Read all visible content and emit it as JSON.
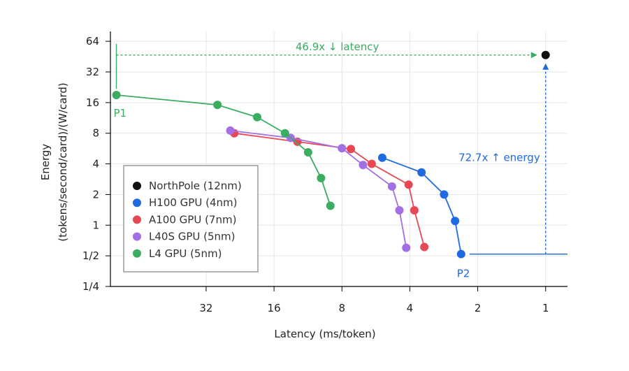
{
  "chart_data": {
    "type": "scatter",
    "xlabel": "Latency (ms/token)",
    "ylabel_line1": "Energy",
    "ylabel_line2": "(tokens/second/card)/(W/card)",
    "x_scale": "log2-reversed",
    "y_scale": "log2",
    "xlim": [
      85,
      0.8
    ],
    "ylim": [
      0.25,
      80
    ],
    "x_ticks": [
      {
        "v": 32,
        "label": "32"
      },
      {
        "v": 16,
        "label": "16"
      },
      {
        "v": 8,
        "label": "8"
      },
      {
        "v": 4,
        "label": "4"
      },
      {
        "v": 2,
        "label": "2"
      },
      {
        "v": 1,
        "label": "1"
      }
    ],
    "y_ticks": [
      {
        "v": 64,
        "label": "64"
      },
      {
        "v": 32,
        "label": "32"
      },
      {
        "v": 16,
        "label": "16"
      },
      {
        "v": 8,
        "label": "8"
      },
      {
        "v": 4,
        "label": "4"
      },
      {
        "v": 2,
        "label": "2"
      },
      {
        "v": 1,
        "label": "1"
      },
      {
        "v": 0.5,
        "label": "1/2"
      },
      {
        "v": 0.25,
        "label": "1/4"
      }
    ],
    "grid": true,
    "legend_position": "lower-left",
    "series": [
      {
        "name": "NorthPole (12nm)",
        "color": "#111111",
        "line": false,
        "points": [
          {
            "x": 1.0,
            "y": 46.9
          }
        ]
      },
      {
        "name": "H100 GPU (4nm)",
        "color": "#1f6ae0",
        "line": true,
        "points": [
          {
            "x": 5.3,
            "y": 4.6
          },
          {
            "x": 3.55,
            "y": 3.3
          },
          {
            "x": 2.82,
            "y": 2.0
          },
          {
            "x": 2.52,
            "y": 1.1
          },
          {
            "x": 2.37,
            "y": 0.52
          }
        ]
      },
      {
        "name": "A100 GPU (7nm)",
        "color": "#e84853",
        "line": true,
        "points": [
          {
            "x": 24.0,
            "y": 8.0
          },
          {
            "x": 12.6,
            "y": 6.6
          },
          {
            "x": 7.3,
            "y": 5.6
          },
          {
            "x": 5.9,
            "y": 4.0
          },
          {
            "x": 4.05,
            "y": 2.5
          },
          {
            "x": 3.82,
            "y": 1.4
          },
          {
            "x": 3.45,
            "y": 0.61
          }
        ]
      },
      {
        "name": "L40S GPU (5nm)",
        "color": "#a46fe3",
        "line": true,
        "points": [
          {
            "x": 25.0,
            "y": 8.5
          },
          {
            "x": 13.5,
            "y": 7.2
          },
          {
            "x": 8.0,
            "y": 5.7
          },
          {
            "x": 6.45,
            "y": 3.9
          },
          {
            "x": 4.8,
            "y": 2.4
          },
          {
            "x": 4.45,
            "y": 1.4
          },
          {
            "x": 4.15,
            "y": 0.6
          }
        ]
      },
      {
        "name": "L4 GPU (5nm)",
        "color": "#3aad61",
        "line": true,
        "points": [
          {
            "x": 80.0,
            "y": 19.0
          },
          {
            "x": 28.5,
            "y": 15.2
          },
          {
            "x": 19.0,
            "y": 11.5
          },
          {
            "x": 14.3,
            "y": 8.0
          },
          {
            "x": 11.3,
            "y": 5.2
          },
          {
            "x": 9.9,
            "y": 2.9
          },
          {
            "x": 9.0,
            "y": 1.55
          }
        ]
      }
    ],
    "annotations": {
      "latency": {
        "text": "46.9x ↓ latency",
        "color": "#3aad61",
        "from_x": 80.0,
        "to_x": 1.0,
        "y": 46.9
      },
      "energy": {
        "text": "72.7x ↑ energy",
        "color": "#1f6ae0",
        "x": 1.0,
        "from_y": 0.52,
        "to_y": 46.9
      },
      "p1": {
        "text": "P1",
        "color": "#3aad61"
      },
      "p2": {
        "text": "P2",
        "color": "#1f6ae0"
      }
    }
  }
}
